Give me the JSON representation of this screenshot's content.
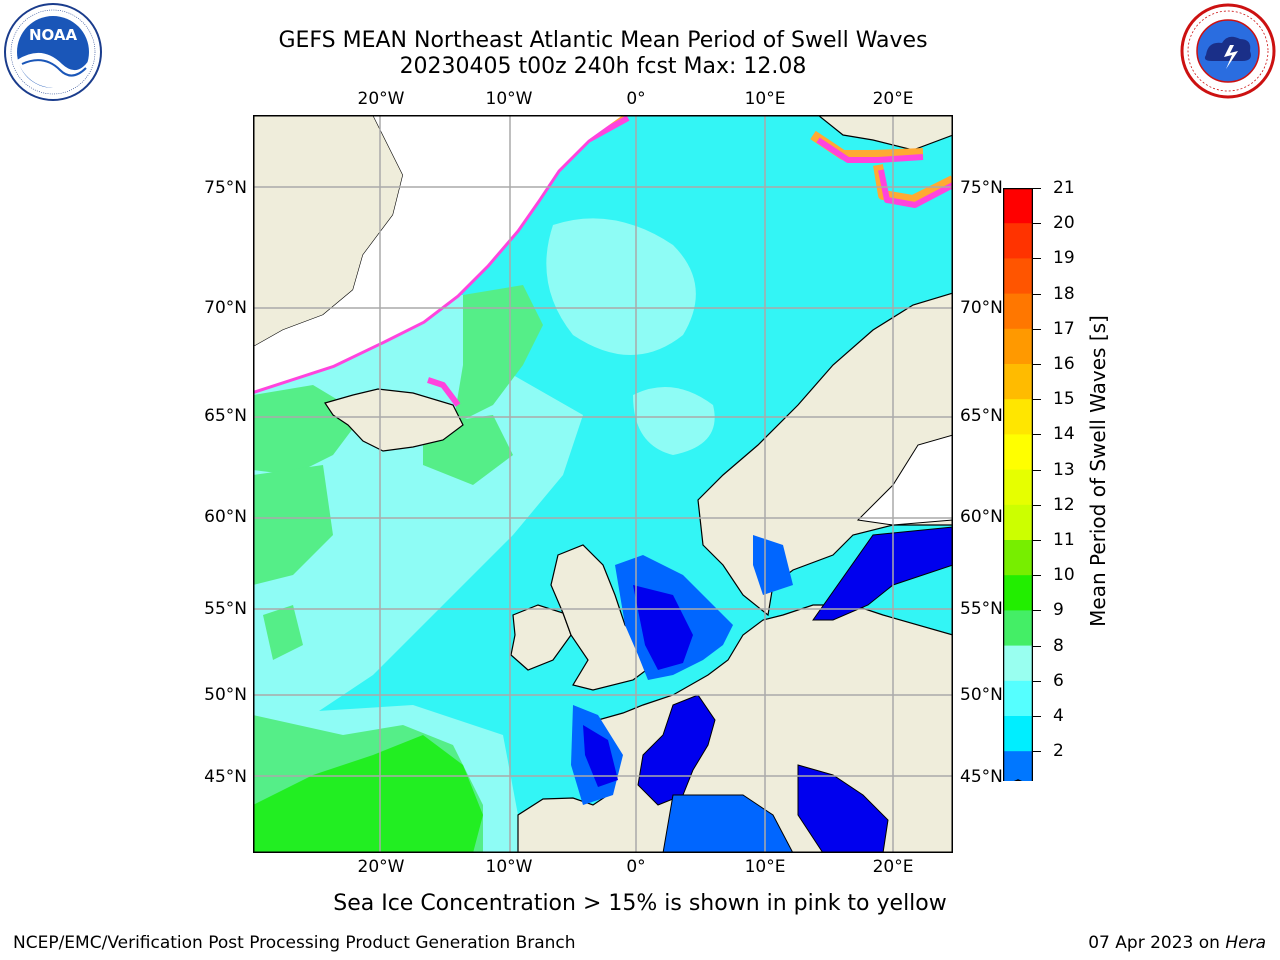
{
  "title": {
    "line1": "GEFS MEAN Northeast Atlantic Mean Period of Swell Waves",
    "line2": "20230405 t00z 240h fcst   Max: 12.08"
  },
  "map": {
    "lon_ticks": [
      "20°W",
      "10°W",
      "0°",
      "10°E",
      "20°E"
    ],
    "lat_ticks": [
      "75°N",
      "70°N",
      "65°N",
      "60°N",
      "55°N",
      "50°N",
      "45°N"
    ],
    "colors": {
      "land": "#efeddb",
      "ocean_main": "#33f5f5",
      "ocean_light": "#8efcf5",
      "ocean_cyan": "#00eaff",
      "ocean_green": "#55ee88",
      "ocean_bright_green": "#22ee22",
      "shallow_blue": "#0066ff",
      "deep_blue": "#0000ee",
      "ice_pink": "#ff44dd",
      "ice_orange": "#ffaa33",
      "ice_yellow": "#ffee33",
      "grid": "#aaaaaa",
      "coast": "#000000"
    }
  },
  "colorbar": {
    "title": "Mean Period of Swell Waves [s]",
    "labels": [
      "21",
      "20",
      "19",
      "18",
      "17",
      "16",
      "15",
      "14",
      "13",
      "12",
      "11",
      "10",
      "9",
      "8",
      "6",
      "4",
      "2"
    ],
    "bands": [
      "#ff0000",
      "#ff3300",
      "#ff5500",
      "#ff7700",
      "#ff9900",
      "#ffbb00",
      "#ffe600",
      "#ffff00",
      "#e6ff00",
      "#ccff00",
      "#77ee00",
      "#22ee00",
      "#44ee66",
      "#99fff0",
      "#55ffff",
      "#00eeff",
      "#0077ff"
    ],
    "extend_color": "#0000ee"
  },
  "note": "Sea Ice Concentration > 15% is shown in pink to yellow",
  "footer": {
    "left": "NCEP/EMC/Verification Post Processing Product Generation Branch",
    "right_prefix": "07 Apr 2023 on ",
    "right_host": "Hera"
  },
  "logos": {
    "noaa": {
      "text": "NOAA",
      "ring_text": "NATIONAL OCEANIC AND ATMOSPHERIC ADMINISTRATION",
      "bottom_text": "U.S. DEPARTMENT OF COMMERCE"
    },
    "nws": {
      "ring_text": "NATIONAL WEATHER SERVICE"
    }
  }
}
